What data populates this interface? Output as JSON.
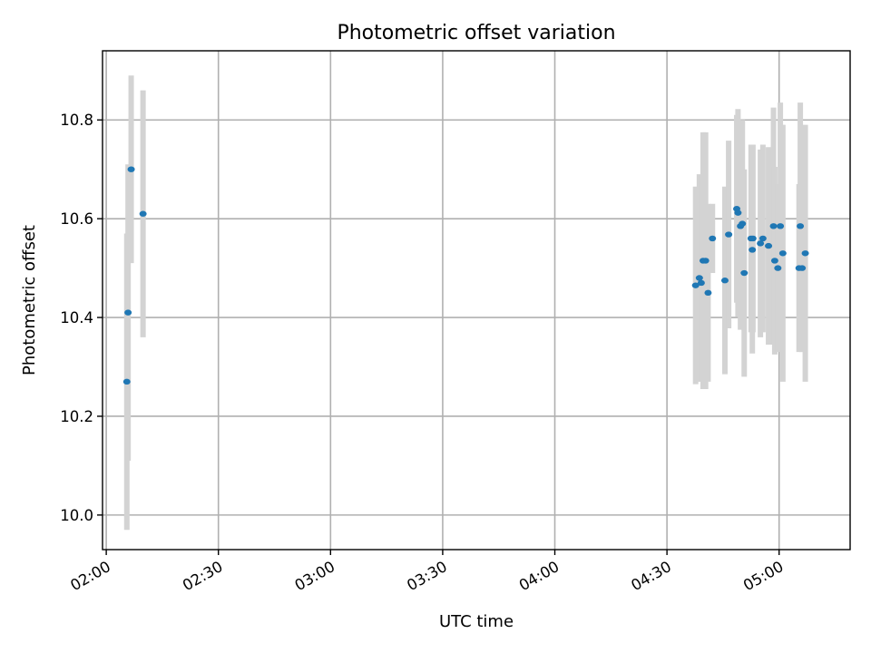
{
  "chart_data": {
    "type": "scatter",
    "title": "Photometric offset variation",
    "xlabel": "UTC time",
    "ylabel": "Photometric offset",
    "xlim": [
      "01:59",
      "05:19"
    ],
    "ylim": [
      9.93,
      10.94
    ],
    "x_ticks": [
      "02:00",
      "02:30",
      "03:00",
      "03:30",
      "04:00",
      "04:30",
      "05:00"
    ],
    "y_ticks": [
      "10.0",
      "10.2",
      "10.4",
      "10.6",
      "10.8"
    ],
    "grid": true,
    "colors": {
      "points": "#1f77b4",
      "errorbars": "#d3d3d3",
      "grid": "#b0b0b0"
    },
    "series": [
      {
        "x": [
          "02:05:30",
          "02:05:50",
          "02:06:40",
          "02:09:50",
          "04:37:40",
          "04:38:40",
          "04:39:10",
          "04:39:40",
          "04:40:20",
          "04:41:00",
          "04:42:10",
          "04:45:30",
          "04:46:30",
          "04:48:40",
          "04:49:00",
          "04:49:40",
          "04:50:10",
          "04:50:40",
          "04:52:30",
          "04:52:50",
          "04:53:00",
          "04:55:00",
          "04:55:40",
          "04:57:10",
          "04:58:30",
          "04:58:50",
          "04:59:40",
          "05:00:20",
          "05:01:00",
          "05:05:20",
          "05:05:40",
          "05:06:10",
          "05:07:00"
        ],
        "y": [
          10.27,
          10.41,
          10.7,
          10.61,
          10.465,
          10.48,
          10.47,
          10.515,
          10.515,
          10.45,
          10.56,
          10.475,
          10.568,
          10.62,
          10.612,
          10.585,
          10.59,
          10.49,
          10.56,
          10.537,
          10.56,
          10.55,
          10.56,
          10.545,
          10.585,
          10.515,
          10.5,
          10.585,
          10.53,
          10.5,
          10.585,
          10.5,
          10.53
        ],
        "yerr": [
          0.3,
          0.3,
          0.19,
          0.25,
          0.2,
          0.21,
          0.2,
          0.26,
          0.26,
          0.18,
          0.07,
          0.19,
          0.19,
          0.19,
          0.21,
          0.21,
          0.21,
          0.21,
          0.19,
          0.21,
          0.19,
          0.19,
          0.19,
          0.2,
          0.24,
          0.19,
          0.17,
          0.25,
          0.26,
          0.17,
          0.25,
          0.17,
          0.26
        ]
      }
    ]
  }
}
